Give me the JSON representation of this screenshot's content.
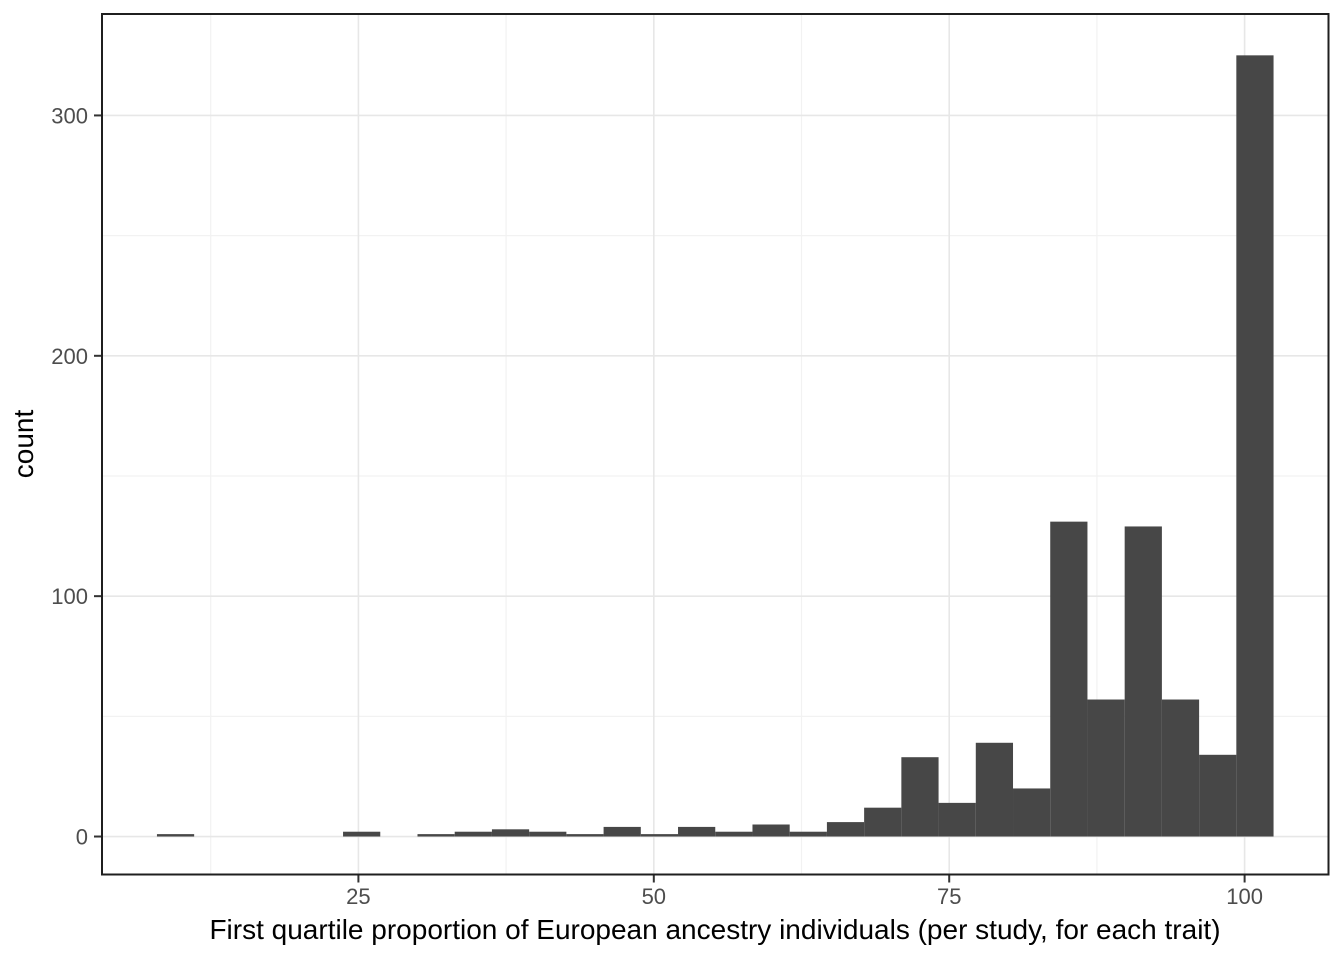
{
  "chart_data": {
    "type": "bar",
    "subtype": "histogram",
    "title": "",
    "xlabel": "First quartile proportion of European ancestry individuals (per study, for each trait)",
    "ylabel": "count",
    "bin_start": 7.95,
    "bin_width": 3.15,
    "counts": [
      1,
      0,
      0,
      0,
      0,
      2,
      0,
      1,
      2,
      3,
      2,
      1,
      4,
      1,
      4,
      2,
      5,
      2,
      6,
      12,
      33,
      14,
      39,
      20,
      131,
      57,
      129,
      57,
      34,
      325
    ],
    "x_ticks": [
      25,
      50,
      75,
      100
    ],
    "y_ticks": [
      0,
      100,
      200,
      300
    ],
    "x_minor_gridlines": [
      12.5,
      37.5,
      62.5,
      87.5
    ],
    "y_minor_gridlines": [
      50,
      150,
      250
    ],
    "xlim": [
      3.3,
      107.1
    ],
    "ylim": [
      -15.8,
      342.2
    ],
    "grid": true,
    "legend": "none",
    "colors": {
      "bar_fill": "#474747",
      "grid_major": "#e7e7e7",
      "grid_minor": "#f2f2f2",
      "panel_border": "#1f1f1f",
      "tick_mark": "#333333",
      "tick_label": "#4d4d4d",
      "axis_title": "#000000",
      "background": "#ffffff"
    }
  }
}
